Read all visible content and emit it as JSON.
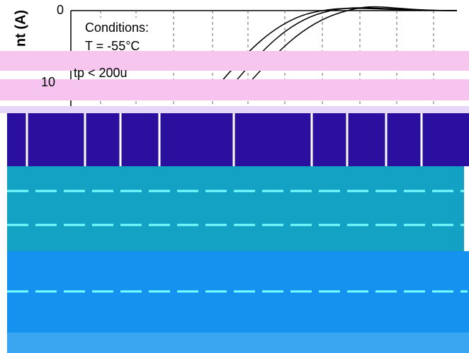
{
  "axis": {
    "label": "nt (A)",
    "ticks": [
      "0",
      "10"
    ]
  },
  "conditions": {
    "title": "Conditions:",
    "lines": [
      "T = -55°C",
      "tp < 200u"
    ]
  }
}
